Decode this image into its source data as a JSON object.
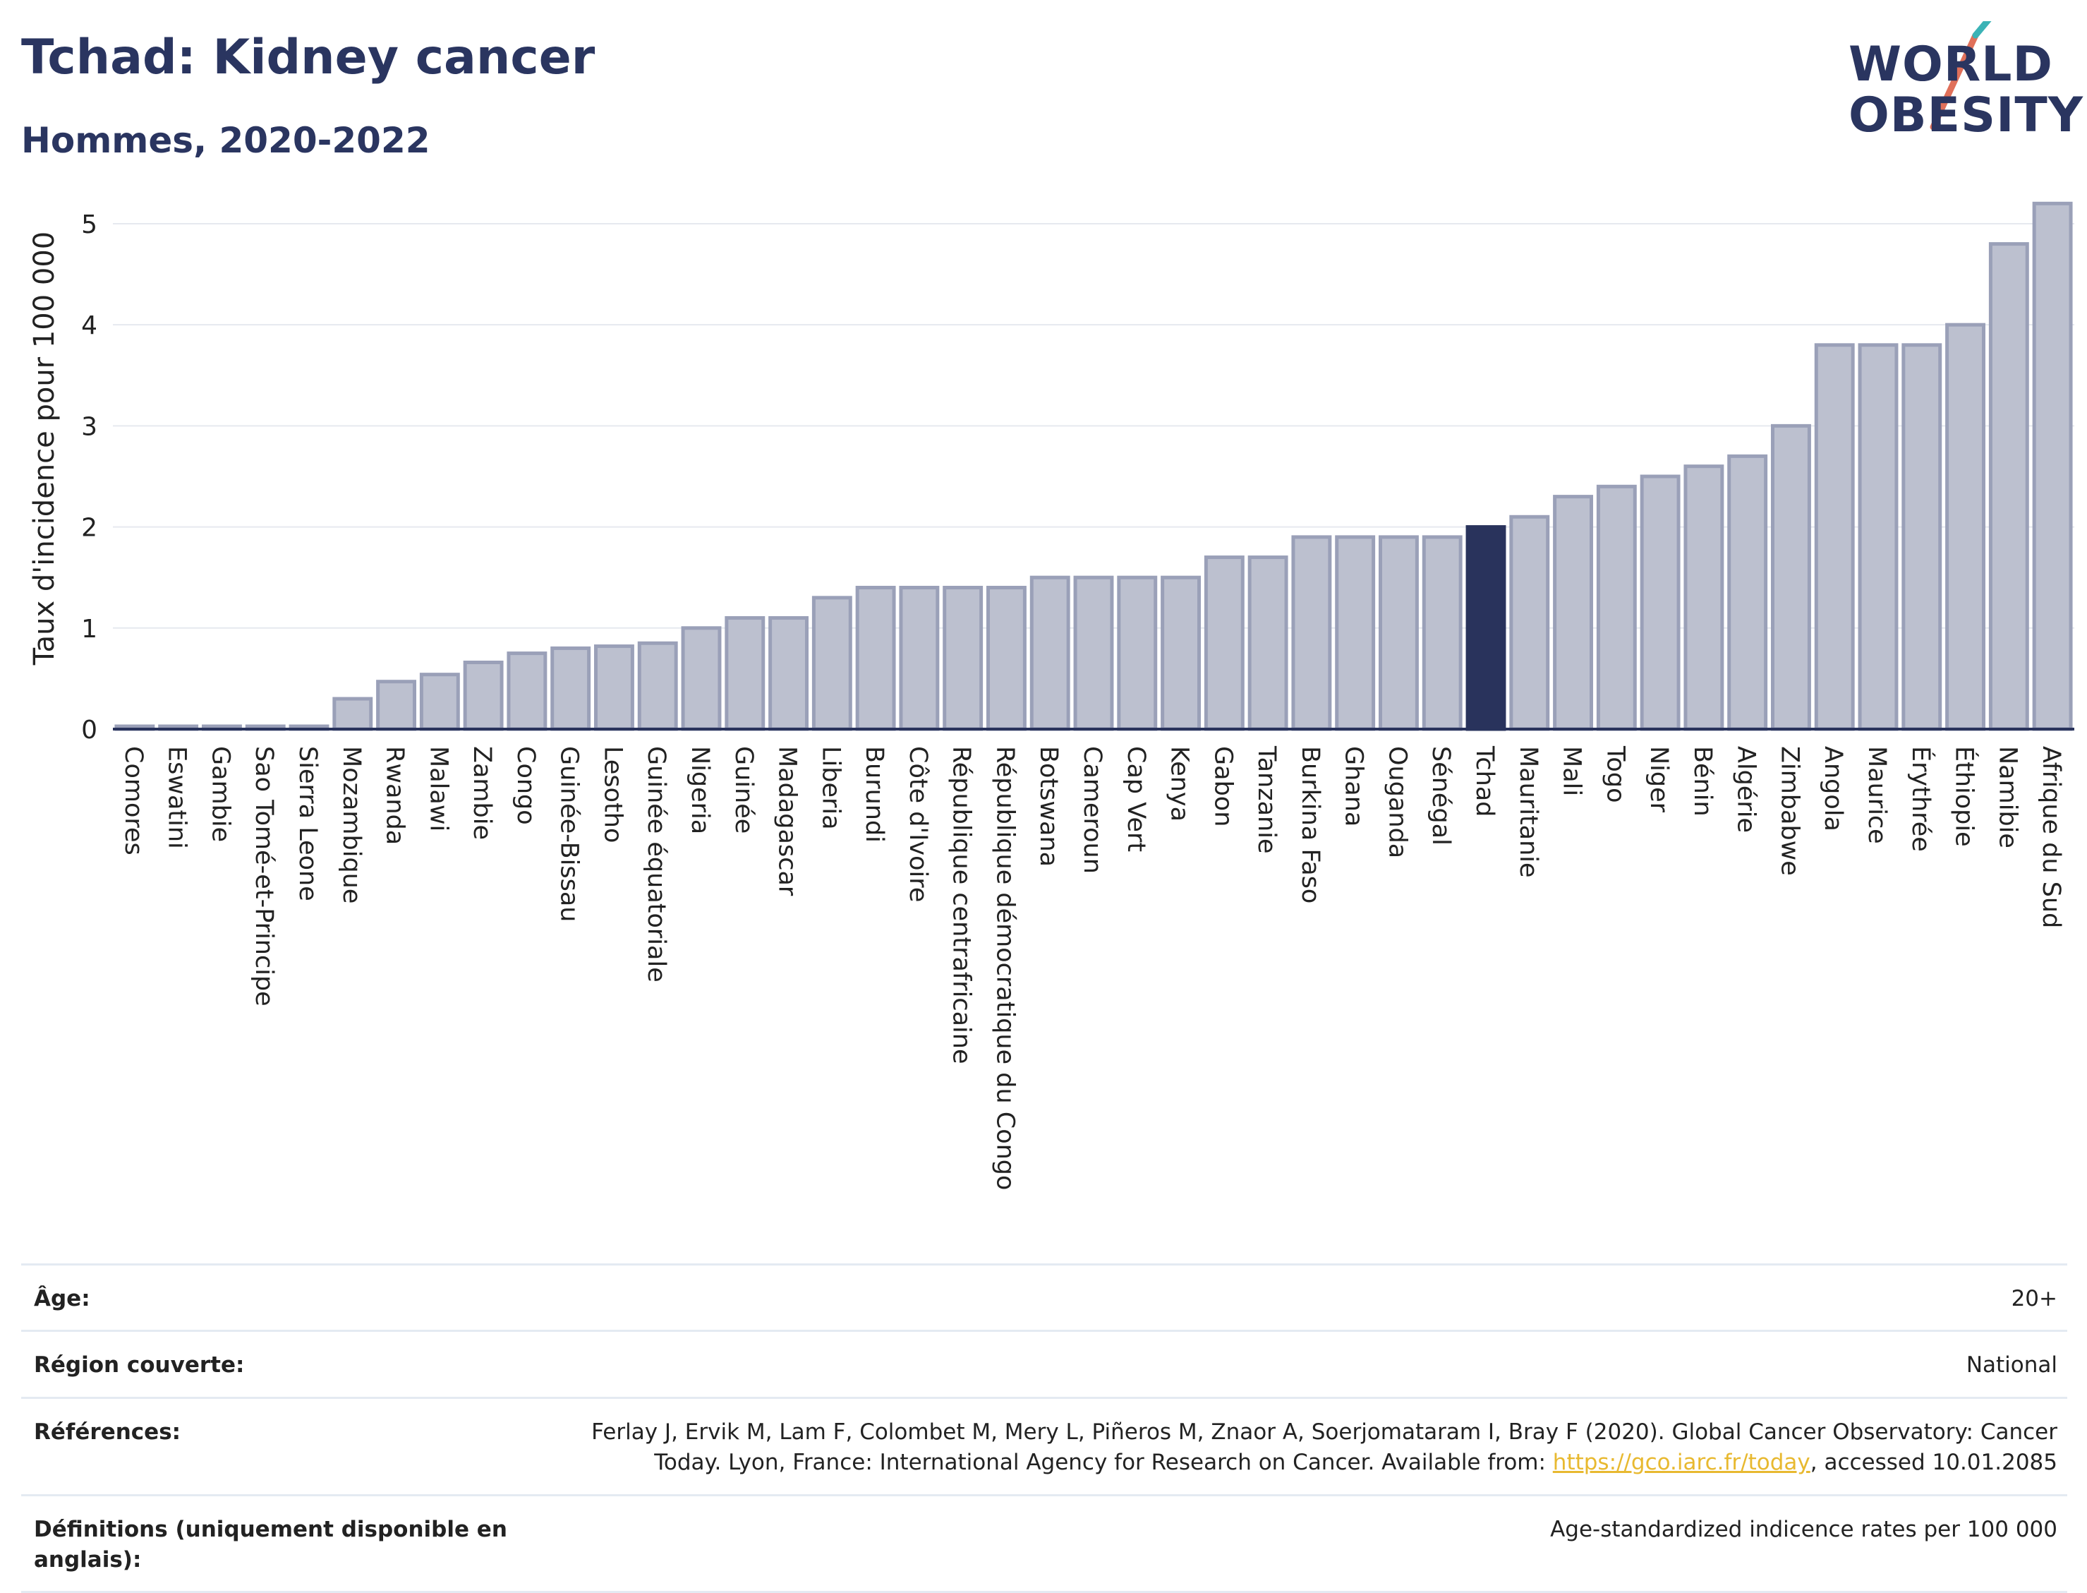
{
  "header": {
    "title": "Tchad: Kidney cancer",
    "subtitle": "Hommes, 2020-2022"
  },
  "logo": {
    "line1": "WORLD",
    "line2": "OBESITY"
  },
  "colors": {
    "highlight": "#29335c",
    "bar_fill": "#bcc0cf",
    "bar_stroke": "#9aa0b8",
    "axis": "#29335c"
  },
  "chart_data": {
    "type": "bar",
    "ylabel": "Taux d'incidence pour 100 000",
    "ylim": [
      0,
      5.3
    ],
    "yticks": [
      0,
      1,
      2,
      3,
      4,
      5
    ],
    "grid": true,
    "highlight": "Tchad",
    "categories": [
      "Comores",
      "Eswatini",
      "Gambie",
      "Sao Tomé-et-Principe",
      "Sierra Leone",
      "Mozambique",
      "Rwanda",
      "Malawi",
      "Zambie",
      "Congo",
      "Guinée-Bissau",
      "Lesotho",
      "Guinée équatoriale",
      "Nigeria",
      "Guinée",
      "Madagascar",
      "Liberia",
      "Burundi",
      "Côte d'Ivoire",
      "République centrafricaine",
      "République démocratique du Congo",
      "Botswana",
      "Cameroun",
      "Cap Vert",
      "Kenya",
      "Gabon",
      "Tanzanie",
      "Burkina Faso",
      "Ghana",
      "Ouganda",
      "Sénégal",
      "Tchad",
      "Mauritanie",
      "Mali",
      "Togo",
      "Niger",
      "Bénin",
      "Algérie",
      "Zimbabwe",
      "Angola",
      "Maurice",
      "Érythrée",
      "Éthiopie",
      "Namibie",
      "Afrique du Sud"
    ],
    "values": [
      0.02,
      0.02,
      0.02,
      0.02,
      0.02,
      0.3,
      0.47,
      0.54,
      0.66,
      0.75,
      0.8,
      0.82,
      0.85,
      1.0,
      1.1,
      1.1,
      1.3,
      1.4,
      1.4,
      1.4,
      1.4,
      1.5,
      1.5,
      1.5,
      1.5,
      1.7,
      1.7,
      1.9,
      1.9,
      1.9,
      1.9,
      2.0,
      2.1,
      2.3,
      2.4,
      2.5,
      2.6,
      2.7,
      3.0,
      3.8,
      3.8,
      3.8,
      4.0,
      4.8,
      5.2
    ]
  },
  "meta": {
    "age_label": "Âge:",
    "age_value": "20+",
    "region_label": "Région couverte:",
    "region_value": "National",
    "refs_label": "Références:",
    "refs_text_1": "Ferlay J, Ervik M, Lam F, Colombet M, Mery L, Piñeros M, Znaor A, Soerjomataram I, Bray F (2020). Global Cancer Observatory: Cancer Today. Lyon, France: International Agency for Research on Cancer. Available from: ",
    "refs_link": "https://gco.iarc.fr/today",
    "refs_text_2": ", accessed 10.01.2085",
    "defs_label": "Définitions (uniquement disponible en anglais):",
    "defs_value": "Age-standardized indicence rates per 100 000"
  }
}
